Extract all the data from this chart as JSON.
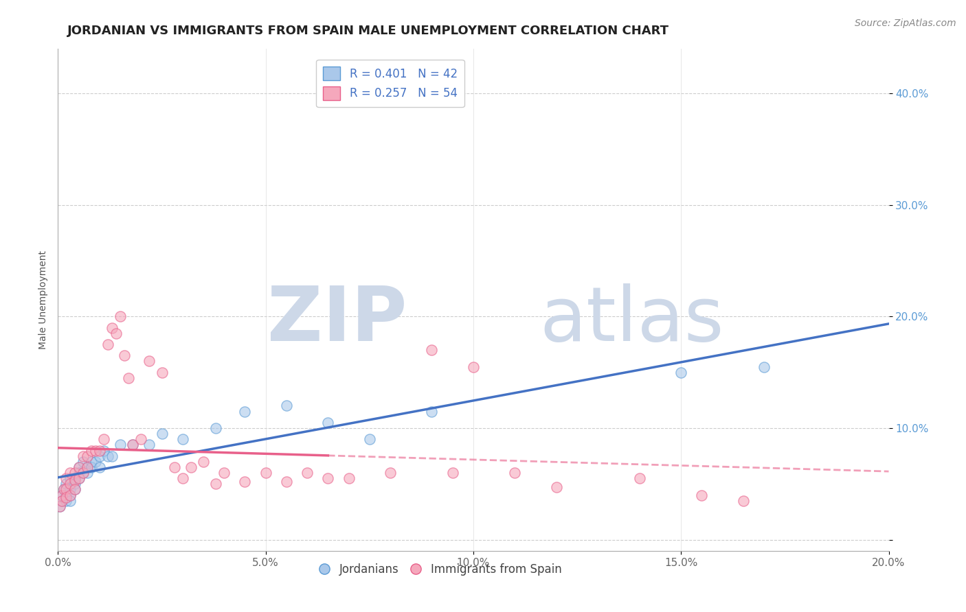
{
  "title": "JORDANIAN VS IMMIGRANTS FROM SPAIN MALE UNEMPLOYMENT CORRELATION CHART",
  "source_text": "Source: ZipAtlas.com",
  "ylabel": "Male Unemployment",
  "xlim": [
    0.0,
    0.2
  ],
  "ylim": [
    -0.01,
    0.44
  ],
  "xticks": [
    0.0,
    0.05,
    0.1,
    0.15,
    0.2
  ],
  "xtick_labels": [
    "0.0%",
    "5.0%",
    "10.0%",
    "15.0%",
    "20.0%"
  ],
  "yticks": [
    0.0,
    0.1,
    0.2,
    0.3,
    0.4
  ],
  "ytick_labels": [
    "",
    "10.0%",
    "20.0%",
    "30.0%",
    "40.0%"
  ],
  "legend1_label": "R = 0.401   N = 42",
  "legend2_label": "R = 0.257   N = 54",
  "legend_bottom_label1": "Jordanians",
  "legend_bottom_label2": "Immigrants from Spain",
  "color_blue": "#aac8ea",
  "color_pink": "#f5a8bc",
  "color_blue_dark": "#5b9bd5",
  "color_pink_dark": "#e8608a",
  "trendline_blue": "#4472c4",
  "trendline_pink": "#e8608a",
  "watermark_color": "#cdd8e8",
  "jordanians_x": [
    0.0005,
    0.001,
    0.001,
    0.0015,
    0.002,
    0.002,
    0.002,
    0.003,
    0.003,
    0.003,
    0.003,
    0.004,
    0.004,
    0.004,
    0.005,
    0.005,
    0.005,
    0.006,
    0.006,
    0.007,
    0.007,
    0.008,
    0.008,
    0.009,
    0.01,
    0.01,
    0.011,
    0.012,
    0.013,
    0.015,
    0.018,
    0.022,
    0.025,
    0.03,
    0.038,
    0.045,
    0.055,
    0.065,
    0.075,
    0.09,
    0.15,
    0.17
  ],
  "jordanians_y": [
    0.03,
    0.04,
    0.035,
    0.045,
    0.05,
    0.04,
    0.035,
    0.055,
    0.045,
    0.04,
    0.035,
    0.055,
    0.05,
    0.045,
    0.065,
    0.06,
    0.055,
    0.07,
    0.06,
    0.065,
    0.06,
    0.07,
    0.065,
    0.07,
    0.075,
    0.065,
    0.08,
    0.075,
    0.075,
    0.085,
    0.085,
    0.085,
    0.095,
    0.09,
    0.1,
    0.115,
    0.12,
    0.105,
    0.09,
    0.115,
    0.15,
    0.155
  ],
  "spain_x": [
    0.0005,
    0.001,
    0.001,
    0.0015,
    0.002,
    0.002,
    0.002,
    0.003,
    0.003,
    0.003,
    0.004,
    0.004,
    0.004,
    0.005,
    0.005,
    0.006,
    0.006,
    0.007,
    0.007,
    0.008,
    0.009,
    0.01,
    0.011,
    0.012,
    0.013,
    0.014,
    0.015,
    0.016,
    0.017,
    0.018,
    0.02,
    0.022,
    0.025,
    0.028,
    0.03,
    0.032,
    0.035,
    0.038,
    0.04,
    0.045,
    0.05,
    0.055,
    0.06,
    0.065,
    0.07,
    0.08,
    0.09,
    0.095,
    0.1,
    0.11,
    0.12,
    0.14,
    0.155,
    0.165
  ],
  "spain_y": [
    0.03,
    0.04,
    0.035,
    0.045,
    0.055,
    0.045,
    0.038,
    0.06,
    0.05,
    0.04,
    0.06,
    0.053,
    0.045,
    0.065,
    0.055,
    0.075,
    0.06,
    0.075,
    0.065,
    0.08,
    0.08,
    0.08,
    0.09,
    0.175,
    0.19,
    0.185,
    0.2,
    0.165,
    0.145,
    0.085,
    0.09,
    0.16,
    0.15,
    0.065,
    0.055,
    0.065,
    0.07,
    0.05,
    0.06,
    0.052,
    0.06,
    0.052,
    0.06,
    0.055,
    0.055,
    0.06,
    0.17,
    0.06,
    0.155,
    0.06,
    0.047,
    0.055,
    0.04,
    0.035
  ],
  "title_fontsize": 13,
  "source_fontsize": 10,
  "ylabel_fontsize": 10,
  "tick_fontsize": 11,
  "legend_fontsize": 12
}
